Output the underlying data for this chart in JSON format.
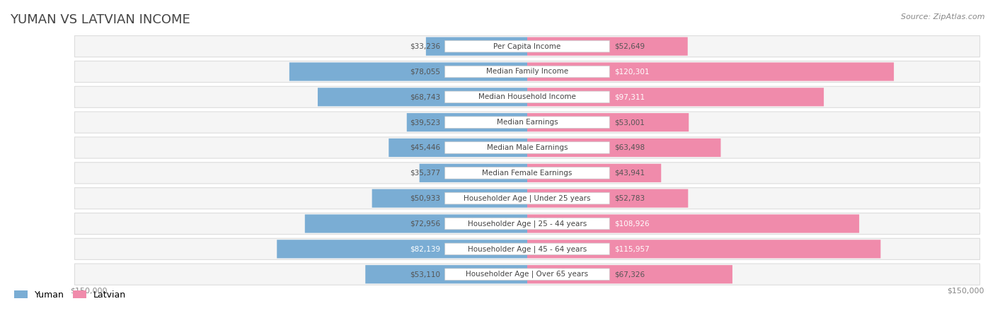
{
  "title": "YUMAN VS LATVIAN INCOME",
  "source": "Source: ZipAtlas.com",
  "categories": [
    "Per Capita Income",
    "Median Family Income",
    "Median Household Income",
    "Median Earnings",
    "Median Male Earnings",
    "Median Female Earnings",
    "Householder Age | Under 25 years",
    "Householder Age | 25 - 44 years",
    "Householder Age | 45 - 64 years",
    "Householder Age | Over 65 years"
  ],
  "yuman_values": [
    33236,
    78055,
    68743,
    39523,
    45446,
    35377,
    50933,
    72956,
    82139,
    53110
  ],
  "latvian_values": [
    52649,
    120301,
    97311,
    53001,
    63498,
    43941,
    52783,
    108926,
    115957,
    67326
  ],
  "max_value": 150000,
  "yuman_color": "#7aadd4",
  "latvian_color": "#f08bab",
  "yuman_color_dark": "#5b9bc8",
  "latvian_color_dark": "#e86898",
  "bar_bg_color": "#f0f0f0",
  "row_bg_color": "#f5f5f5",
  "row_border_color": "#dddddd",
  "label_bg_color": "#ffffff",
  "title_color": "#444444",
  "value_color_light": "#666666",
  "value_color_dark": "#ffffff",
  "legend_yuman_color": "#7aadd4",
  "legend_latvian_color": "#f08bab",
  "axis_label_color": "#888888",
  "threshold_for_white_text": 80000
}
